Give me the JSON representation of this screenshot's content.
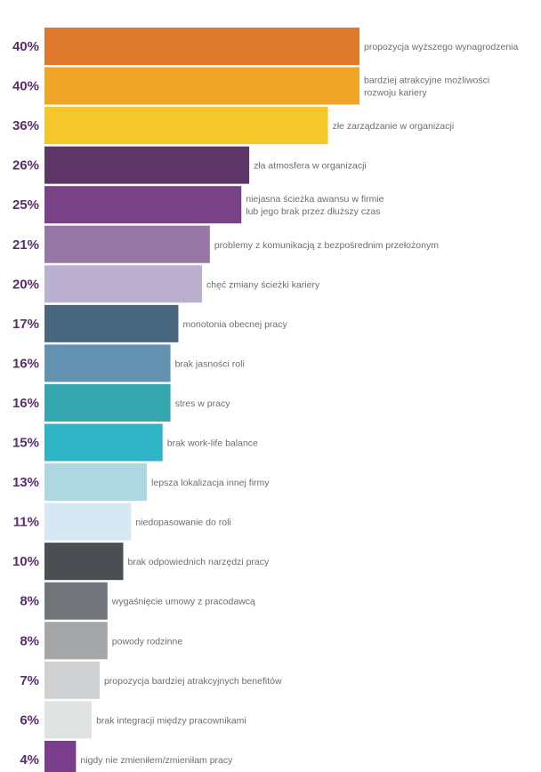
{
  "chart_data": {
    "type": "bar",
    "orientation": "horizontal",
    "title": "",
    "xlabel": "",
    "ylabel": "",
    "xlim": [
      0,
      40
    ],
    "grid": false,
    "categories": [
      [
        "propozycja wyższego wynagrodzenia"
      ],
      [
        "bardziej atrakcyjne możliwości",
        "rozwoju kariery"
      ],
      [
        "złe zarządzanie w organizacji"
      ],
      [
        "zła atmosfera w organizacji"
      ],
      [
        "niejasna ścieżka awansu w firmie",
        "lub jego brak przez dłuższy czas"
      ],
      [
        "problemy z komunikacją z bezpośrednim przełożonym"
      ],
      [
        "chęć zmiany ścieżki kariery"
      ],
      [
        "monotonia obecnej pracy"
      ],
      [
        "brak jasności roli"
      ],
      [
        "stres w pracy"
      ],
      [
        "brak work-life balance"
      ],
      [
        "lepsza lokalizacja innej firmy"
      ],
      [
        "niedopasowanie do roli"
      ],
      [
        "brak odpowiednich narzędzi pracy"
      ],
      [
        "wygaśnięcie umowy z pracodawcą"
      ],
      [
        "powody rodzinne"
      ],
      [
        "propozycja bardziej atrakcyjnych benefitów"
      ],
      [
        "brak integracji między pracownikami"
      ],
      [
        "nigdy nie zmieniłem/zmieniłam pracy"
      ]
    ],
    "values": [
      40,
      40,
      36,
      26,
      25,
      21,
      20,
      17,
      16,
      16,
      15,
      13,
      11,
      10,
      8,
      8,
      7,
      6,
      4
    ],
    "value_labels": [
      "40%",
      "40%",
      "36%",
      "26%",
      "25%",
      "21%",
      "20%",
      "17%",
      "16%",
      "16%",
      "15%",
      "13%",
      "11%",
      "10%",
      "8%",
      "8%",
      "7%",
      "6%",
      "4%"
    ],
    "colors": [
      "#de7a2d",
      "#f0a529",
      "#f6c72a",
      "#5e3668",
      "#7a4287",
      "#9677a6",
      "#bcb0d1",
      "#49687f",
      "#6391b0",
      "#36a6ae",
      "#2fb5c6",
      "#add7e1",
      "#d6e8f3",
      "#4b4e52",
      "#717478",
      "#a4a6a8",
      "#cfd0d1",
      "#dfe4e3",
      "#7a3d8c"
    ]
  }
}
